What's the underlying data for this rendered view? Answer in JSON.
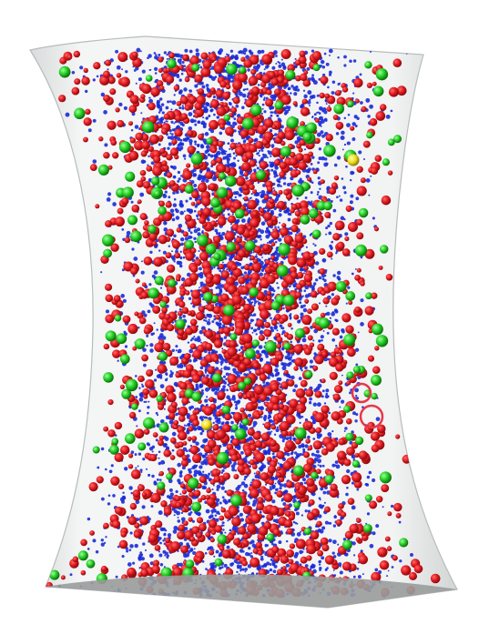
{
  "scene": {
    "description_kind": "3D particle render",
    "background_color": "#ffffff",
    "specimen_color": "#e8eaea",
    "specimen_edge_color": "#b8bcbc",
    "end_cap_color": "#9a9c9c",
    "particle_colors": {
      "red": "#e0191f",
      "blue": "#1b2bd6",
      "green": "#22cc22",
      "yellow": "#f2e020"
    },
    "highlight_ring_color": "#e8374a",
    "highlight_ring_count": 2
  }
}
